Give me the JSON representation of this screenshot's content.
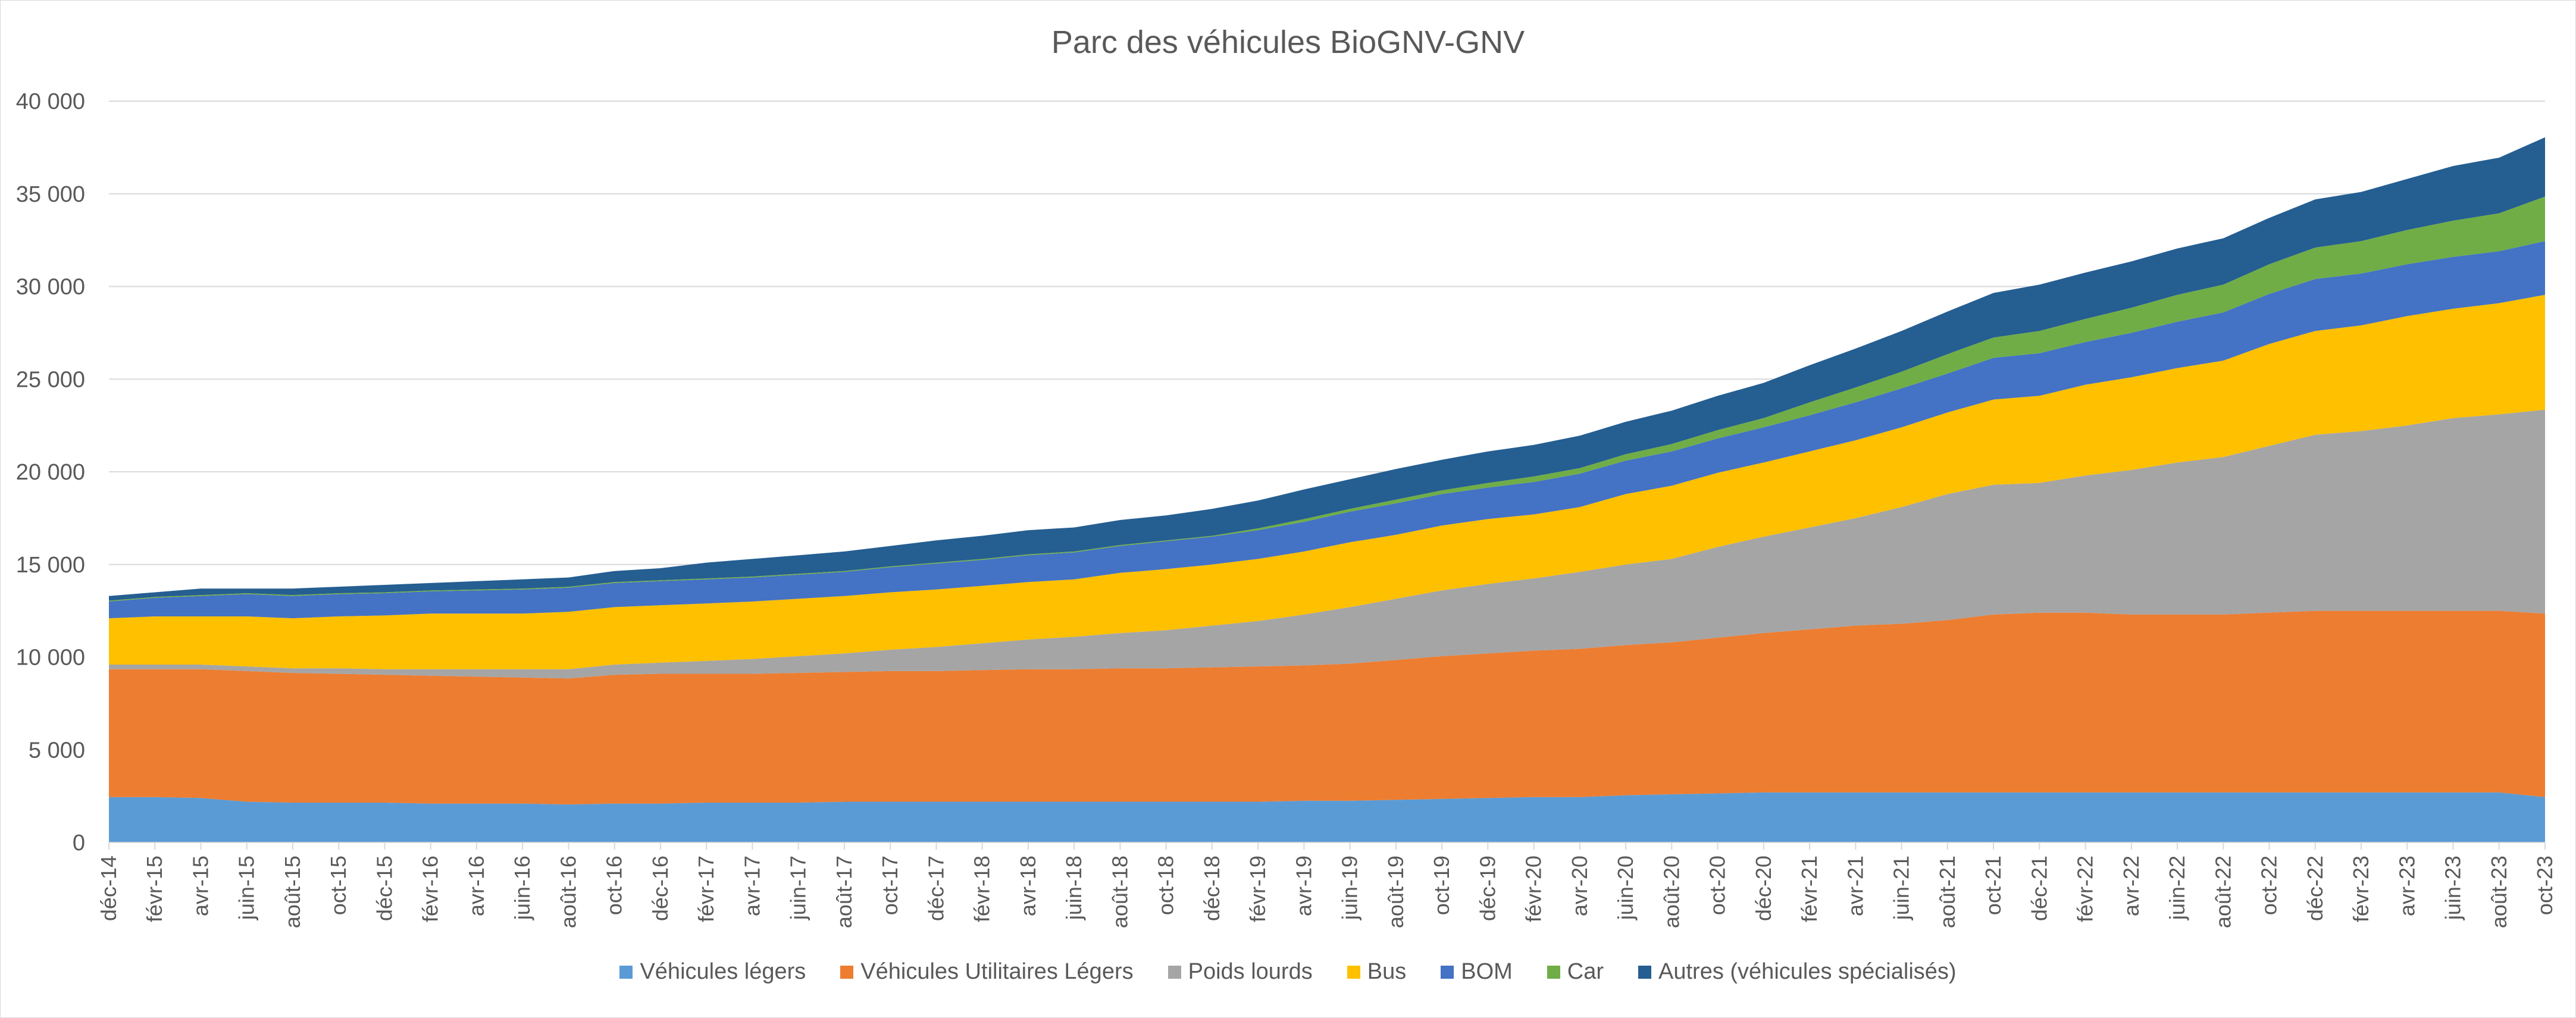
{
  "chart_data": {
    "type": "area",
    "stacked": true,
    "title": "Parc des véhicules BioGNV-GNV",
    "xlabel": "",
    "ylabel": "",
    "ylim": [
      0,
      40000
    ],
    "y_ticks": [
      0,
      5000,
      10000,
      15000,
      20000,
      25000,
      30000,
      35000,
      40000
    ],
    "y_tick_labels": [
      "0",
      "5 000",
      "10 000",
      "15 000",
      "20 000",
      "25 000",
      "30 000",
      "35 000",
      "40 000"
    ],
    "grid": true,
    "legend_position": "bottom",
    "categories": [
      "déc-14",
      "févr-15",
      "avr-15",
      "juin-15",
      "août-15",
      "oct-15",
      "déc-15",
      "févr-16",
      "avr-16",
      "juin-16",
      "août-16",
      "oct-16",
      "déc-16",
      "févr-17",
      "avr-17",
      "juin-17",
      "août-17",
      "oct-17",
      "déc-17",
      "févr-18",
      "avr-18",
      "juin-18",
      "août-18",
      "oct-18",
      "déc-18",
      "févr-19",
      "avr-19",
      "juin-19",
      "août-19",
      "oct-19",
      "déc-19",
      "févr-20",
      "avr-20",
      "juin-20",
      "août-20",
      "oct-20",
      "déc-20",
      "févr-21",
      "avr-21",
      "juin-21",
      "août-21",
      "oct-21",
      "déc-21",
      "févr-22",
      "avr-22",
      "juin-22",
      "août-22",
      "oct-22",
      "déc-22",
      "févr-23",
      "avr-23",
      "juin-23",
      "août-23",
      "oct-23"
    ],
    "series": [
      {
        "name": "Véhicules légers",
        "color": "#5b9bd5",
        "values": [
          2450,
          2450,
          2400,
          2200,
          2150,
          2150,
          2150,
          2100,
          2100,
          2100,
          2050,
          2100,
          2100,
          2150,
          2150,
          2150,
          2200,
          2200,
          2200,
          2200,
          2200,
          2200,
          2200,
          2200,
          2200,
          2200,
          2250,
          2250,
          2300,
          2350,
          2400,
          2450,
          2450,
          2550,
          2600,
          2650,
          2700,
          2700,
          2700,
          2700,
          2700,
          2700,
          2700,
          2700,
          2700,
          2700,
          2700,
          2700,
          2700,
          2700,
          2700,
          2700,
          2700,
          2450
        ]
      },
      {
        "name": "Véhicules Utilitaires Légers",
        "color": "#ed7d31",
        "values": [
          6900,
          6900,
          6950,
          7050,
          7000,
          6950,
          6900,
          6900,
          6850,
          6800,
          6800,
          6950,
          7000,
          6950,
          6950,
          7000,
          7000,
          7050,
          7050,
          7100,
          7150,
          7150,
          7200,
          7200,
          7250,
          7300,
          7300,
          7400,
          7550,
          7700,
          7800,
          7900,
          8000,
          8100,
          8200,
          8400,
          8600,
          8800,
          9000,
          9100,
          9300,
          9600,
          9700,
          9700,
          9600,
          9600,
          9600,
          9700,
          9800,
          9800,
          9800,
          9800,
          9800,
          9900
        ]
      },
      {
        "name": "Poids lourds",
        "color": "#a5a5a5",
        "values": [
          250,
          250,
          250,
          250,
          250,
          300,
          300,
          350,
          400,
          450,
          500,
          550,
          600,
          700,
          800,
          900,
          1000,
          1150,
          1300,
          1450,
          1600,
          1750,
          1900,
          2050,
          2250,
          2450,
          2750,
          3050,
          3300,
          3550,
          3750,
          3900,
          4150,
          4350,
          4500,
          4900,
          5200,
          5500,
          5800,
          6300,
          6800,
          7000,
          7000,
          7400,
          7800,
          8200,
          8500,
          9000,
          9500,
          9700,
          10000,
          10400,
          10600,
          11000
        ]
      },
      {
        "name": "Bus",
        "color": "#ffc000",
        "values": [
          2500,
          2600,
          2600,
          2700,
          2700,
          2800,
          2900,
          3000,
          3000,
          3000,
          3100,
          3100,
          3100,
          3100,
          3100,
          3100,
          3100,
          3100,
          3100,
          3100,
          3100,
          3100,
          3250,
          3300,
          3300,
          3350,
          3400,
          3500,
          3450,
          3500,
          3500,
          3450,
          3500,
          3800,
          3950,
          4000,
          4000,
          4100,
          4200,
          4300,
          4400,
          4600,
          4700,
          4900,
          5000,
          5100,
          5200,
          5500,
          5600,
          5700,
          5900,
          5900,
          6000,
          6200
        ]
      },
      {
        "name": "BOM",
        "color": "#4472c4",
        "values": [
          900,
          1000,
          1100,
          1200,
          1200,
          1200,
          1200,
          1200,
          1250,
          1300,
          1300,
          1300,
          1300,
          1300,
          1300,
          1300,
          1300,
          1350,
          1400,
          1400,
          1450,
          1450,
          1450,
          1500,
          1500,
          1550,
          1600,
          1650,
          1700,
          1700,
          1700,
          1750,
          1800,
          1800,
          1850,
          1850,
          1900,
          1950,
          2050,
          2100,
          2100,
          2250,
          2300,
          2300,
          2400,
          2500,
          2600,
          2700,
          2800,
          2800,
          2800,
          2800,
          2800,
          2900
        ]
      },
      {
        "name": "Car",
        "color": "#70ad47",
        "values": [
          50,
          50,
          50,
          50,
          50,
          50,
          50,
          50,
          50,
          50,
          50,
          50,
          50,
          50,
          50,
          50,
          50,
          50,
          50,
          50,
          50,
          50,
          50,
          50,
          50,
          100,
          150,
          150,
          200,
          200,
          250,
          300,
          300,
          350,
          400,
          450,
          500,
          700,
          800,
          900,
          1050,
          1100,
          1200,
          1250,
          1350,
          1450,
          1500,
          1600,
          1700,
          1750,
          1850,
          1950,
          2050,
          2400
        ]
      },
      {
        "name": "Autres (véhicules spécialisés)",
        "color": "#255e91",
        "values": [
          250,
          250,
          350,
          250,
          350,
          350,
          400,
          400,
          450,
          500,
          500,
          600,
          650,
          850,
          950,
          1000,
          1050,
          1100,
          1200,
          1250,
          1300,
          1300,
          1350,
          1350,
          1450,
          1500,
          1600,
          1600,
          1650,
          1650,
          1700,
          1700,
          1750,
          1750,
          1800,
          1850,
          1900,
          2000,
          2100,
          2200,
          2300,
          2400,
          2500,
          2500,
          2500,
          2500,
          2500,
          2500,
          2600,
          2650,
          2750,
          2950,
          3000,
          3200
        ]
      }
    ]
  }
}
